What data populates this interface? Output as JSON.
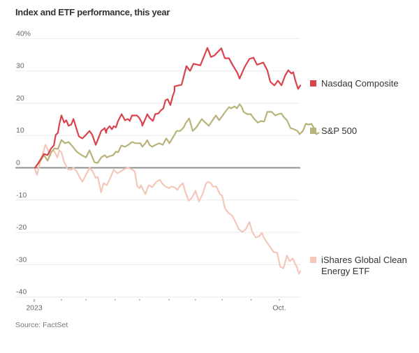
{
  "chart_data": {
    "type": "line",
    "title": "Index and ETF performance, this year",
    "source": "Source: FactSet",
    "xlabel": "",
    "ylabel": "",
    "x_unit": "months since Jan 1, 2023",
    "xlim": [
      0,
      9.8
    ],
    "ylim": [
      -40,
      40
    ],
    "grid": true,
    "y_ticks": [
      {
        "value": 40,
        "label": "40%"
      },
      {
        "value": 30,
        "label": "30"
      },
      {
        "value": 20,
        "label": "20"
      },
      {
        "value": 10,
        "label": "10"
      },
      {
        "value": 0,
        "label": "0"
      },
      {
        "value": -10,
        "label": "-10"
      },
      {
        "value": -20,
        "label": "-20"
      },
      {
        "value": -30,
        "label": "-30"
      },
      {
        "value": -40,
        "label": "-40"
      }
    ],
    "x_ticks": [
      {
        "value": 0,
        "label": "2023"
      },
      {
        "value": 1,
        "label": ""
      },
      {
        "value": 1.9,
        "label": ""
      },
      {
        "value": 2.97,
        "label": ""
      },
      {
        "value": 3.87,
        "label": ""
      },
      {
        "value": 4.95,
        "label": ""
      },
      {
        "value": 5.92,
        "label": ""
      },
      {
        "value": 6.9,
        "label": ""
      },
      {
        "value": 7.97,
        "label": ""
      },
      {
        "value": 9,
        "label": "Oct."
      }
    ],
    "legend_placement": "right-inline",
    "series": [
      {
        "name": "Nasdaq Composite",
        "color": "#d9434c",
        "points": [
          [
            0.03,
            0
          ],
          [
            0.15,
            1.5
          ],
          [
            0.28,
            3.2
          ],
          [
            0.36,
            4.3
          ],
          [
            0.49,
            3.9
          ],
          [
            0.62,
            6.0
          ],
          [
            0.72,
            6.9
          ],
          [
            0.79,
            10.2
          ],
          [
            0.87,
            10.8
          ],
          [
            0.92,
            13.4
          ],
          [
            1.0,
            16.2
          ],
          [
            1.1,
            14.0
          ],
          [
            1.18,
            14.7
          ],
          [
            1.26,
            13.0
          ],
          [
            1.36,
            13.4
          ],
          [
            1.44,
            15.1
          ],
          [
            1.56,
            11.9
          ],
          [
            1.64,
            9.7
          ],
          [
            1.77,
            9.1
          ],
          [
            1.9,
            10.2
          ],
          [
            2.03,
            11.4
          ],
          [
            2.13,
            10.2
          ],
          [
            2.26,
            7.1
          ],
          [
            2.33,
            8.6
          ],
          [
            2.46,
            11.4
          ],
          [
            2.59,
            12.3
          ],
          [
            2.64,
            10.8
          ],
          [
            2.67,
            11.9
          ],
          [
            2.77,
            12.9
          ],
          [
            2.85,
            11.9
          ],
          [
            2.92,
            12.9
          ],
          [
            3.0,
            12.5
          ],
          [
            3.08,
            14.5
          ],
          [
            3.21,
            16.6
          ],
          [
            3.33,
            14.7
          ],
          [
            3.44,
            15.1
          ],
          [
            3.51,
            14.5
          ],
          [
            3.59,
            16.2
          ],
          [
            3.77,
            16.2
          ],
          [
            3.85,
            15.5
          ],
          [
            3.95,
            14.0
          ],
          [
            3.97,
            13.0
          ],
          [
            4.08,
            15.1
          ],
          [
            4.15,
            16.6
          ],
          [
            4.23,
            15.5
          ],
          [
            4.36,
            14.5
          ],
          [
            4.44,
            16.6
          ],
          [
            4.56,
            16.8
          ],
          [
            4.64,
            17.7
          ],
          [
            4.74,
            18.4
          ],
          [
            4.82,
            20.9
          ],
          [
            4.9,
            21.2
          ],
          [
            5.0,
            19.4
          ],
          [
            5.08,
            22.0
          ],
          [
            5.15,
            23.8
          ],
          [
            5.15,
            24.5
          ],
          [
            5.15,
            25.2
          ],
          [
            5.41,
            25.7
          ],
          [
            5.59,
            31.5
          ],
          [
            5.72,
            30.0
          ],
          [
            5.85,
            32.2
          ],
          [
            6.1,
            31.7
          ],
          [
            6.36,
            37.1
          ],
          [
            6.49,
            34.3
          ],
          [
            6.62,
            34.8
          ],
          [
            6.87,
            37.0
          ],
          [
            6.87,
            37.0
          ],
          [
            7.0,
            33.9
          ],
          [
            7.15,
            33.9
          ],
          [
            7.28,
            31.9
          ],
          [
            7.46,
            29.4
          ],
          [
            7.54,
            27.6
          ],
          [
            7.72,
            31.1
          ],
          [
            7.9,
            33.7
          ],
          [
            8.05,
            34.1
          ],
          [
            8.18,
            31.9
          ],
          [
            8.41,
            32.6
          ],
          [
            8.56,
            30.2
          ],
          [
            8.67,
            26.6
          ],
          [
            8.82,
            25.5
          ],
          [
            8.95,
            27.0
          ],
          [
            9.08,
            25.5
          ],
          [
            9.21,
            28.5
          ],
          [
            9.33,
            30.2
          ],
          [
            9.44,
            29.2
          ],
          [
            9.51,
            29.6
          ],
          [
            9.59,
            27.0
          ],
          [
            9.69,
            24.4
          ],
          [
            9.77,
            25.5
          ]
        ]
      },
      {
        "name": "S&P 500",
        "color": "#b8b37a",
        "points": [
          [
            0.03,
            0
          ],
          [
            0.23,
            2.2
          ],
          [
            0.36,
            3.9
          ],
          [
            0.49,
            2.2
          ],
          [
            0.62,
            4.8
          ],
          [
            0.74,
            6.0
          ],
          [
            0.87,
            5.8
          ],
          [
            1.0,
            8.6
          ],
          [
            1.13,
            7.6
          ],
          [
            1.26,
            8.0
          ],
          [
            1.38,
            6.9
          ],
          [
            1.56,
            5.0
          ],
          [
            1.74,
            3.9
          ],
          [
            1.9,
            3.2
          ],
          [
            2.03,
            5.4
          ],
          [
            2.21,
            1.7
          ],
          [
            2.33,
            1.5
          ],
          [
            2.46,
            3.2
          ],
          [
            2.59,
            3.9
          ],
          [
            2.67,
            3.2
          ],
          [
            2.77,
            3.6
          ],
          [
            2.9,
            3.9
          ],
          [
            3.0,
            5.0
          ],
          [
            3.08,
            4.8
          ],
          [
            3.2,
            6.9
          ],
          [
            3.33,
            6.5
          ],
          [
            3.46,
            7.1
          ],
          [
            3.59,
            8.0
          ],
          [
            3.72,
            7.6
          ],
          [
            3.9,
            7.6
          ],
          [
            3.97,
            6.5
          ],
          [
            4.08,
            7.6
          ],
          [
            4.15,
            8.6
          ],
          [
            4.23,
            7.1
          ],
          [
            4.33,
            6.5
          ],
          [
            4.46,
            7.1
          ],
          [
            4.59,
            7.6
          ],
          [
            4.72,
            7.1
          ],
          [
            4.85,
            9.1
          ],
          [
            4.97,
            7.6
          ],
          [
            5.1,
            9.5
          ],
          [
            5.23,
            11.4
          ],
          [
            5.36,
            11.4
          ],
          [
            5.49,
            12.5
          ],
          [
            5.56,
            13.8
          ],
          [
            5.69,
            15.3
          ],
          [
            5.82,
            11.4
          ],
          [
            5.95,
            12.5
          ],
          [
            6.15,
            15.1
          ],
          [
            6.28,
            14.0
          ],
          [
            6.41,
            13.0
          ],
          [
            6.49,
            14.0
          ],
          [
            6.67,
            16.2
          ],
          [
            6.79,
            14.7
          ],
          [
            6.92,
            16.2
          ],
          [
            7.05,
            17.7
          ],
          [
            7.15,
            18.8
          ],
          [
            7.23,
            18.4
          ],
          [
            7.36,
            19.0
          ],
          [
            7.44,
            18.4
          ],
          [
            7.54,
            19.7
          ],
          [
            7.62,
            18.8
          ],
          [
            7.69,
            17.3
          ],
          [
            7.82,
            16.6
          ],
          [
            7.95,
            16.6
          ],
          [
            8.08,
            15.1
          ],
          [
            8.21,
            14.0
          ],
          [
            8.33,
            14.5
          ],
          [
            8.44,
            14.3
          ],
          [
            8.56,
            17.3
          ],
          [
            8.72,
            17.3
          ],
          [
            8.85,
            16.2
          ],
          [
            8.97,
            16.6
          ],
          [
            9.08,
            16.8
          ],
          [
            9.15,
            15.8
          ],
          [
            9.28,
            14.7
          ],
          [
            9.41,
            12.3
          ],
          [
            9.54,
            11.9
          ],
          [
            9.67,
            11.4
          ],
          [
            9.74,
            10.4
          ],
          [
            9.87,
            11.4
          ],
          [
            9.97,
            13.6
          ],
          [
            10.08,
            13.4
          ],
          [
            10.18,
            13.6
          ],
          [
            10.26,
            12.5
          ],
          [
            10.36,
            10.4
          ],
          [
            10.44,
            10.8
          ]
        ]
      },
      {
        "name": "iShares Global Clean Energy ETF",
        "color": "#f4c7b8",
        "points": [
          [
            0.03,
            -0.4
          ],
          [
            0.1,
            -2.2
          ],
          [
            0.23,
            2.2
          ],
          [
            0.33,
            4.8
          ],
          [
            0.41,
            7.1
          ],
          [
            0.49,
            5.8
          ],
          [
            0.59,
            3.7
          ],
          [
            0.62,
            5.0
          ],
          [
            0.72,
            5.4
          ],
          [
            0.85,
            3.2
          ],
          [
            0.92,
            5.4
          ],
          [
            1.0,
            4.8
          ],
          [
            1.1,
            1.7
          ],
          [
            1.23,
            -0.4
          ],
          [
            1.36,
            -0.6
          ],
          [
            1.44,
            0
          ],
          [
            1.56,
            -1.1
          ],
          [
            1.69,
            -3.2
          ],
          [
            1.77,
            -4.3
          ],
          [
            1.9,
            -2.2
          ],
          [
            2.03,
            0
          ],
          [
            2.15,
            -1.1
          ],
          [
            2.26,
            -3.2
          ],
          [
            2.33,
            -2.8
          ],
          [
            2.46,
            -7.6
          ],
          [
            2.54,
            -4.8
          ],
          [
            2.67,
            -5.4
          ],
          [
            2.79,
            -3.2
          ],
          [
            2.92,
            -0.6
          ],
          [
            3.05,
            -1.7
          ],
          [
            3.18,
            -1.1
          ],
          [
            3.31,
            -0.4
          ],
          [
            3.44,
            0
          ],
          [
            3.56,
            -0.4
          ],
          [
            3.69,
            -1.1
          ],
          [
            3.79,
            -5.8
          ],
          [
            3.87,
            -6.3
          ],
          [
            3.92,
            -5.4
          ],
          [
            4.08,
            -8.2
          ],
          [
            4.2,
            -5.4
          ],
          [
            4.33,
            -6.0
          ],
          [
            4.49,
            -4.3
          ],
          [
            4.62,
            -3.7
          ],
          [
            4.69,
            -4.8
          ],
          [
            4.82,
            -5.8
          ],
          [
            4.95,
            -6.3
          ],
          [
            5.03,
            -5.8
          ],
          [
            5.15,
            -6.0
          ],
          [
            5.26,
            -6.9
          ],
          [
            5.33,
            -5.8
          ],
          [
            5.46,
            -4.8
          ],
          [
            5.54,
            -7.3
          ],
          [
            5.67,
            -10.2
          ],
          [
            5.79,
            -9.3
          ],
          [
            5.92,
            -7.1
          ],
          [
            6.05,
            -10.4
          ],
          [
            6.18,
            -8.2
          ],
          [
            6.31,
            -4.8
          ],
          [
            6.38,
            -4.3
          ],
          [
            6.49,
            -4.8
          ],
          [
            6.56,
            -5.8
          ],
          [
            6.69,
            -5.8
          ],
          [
            6.82,
            -8.2
          ],
          [
            6.9,
            -8.6
          ],
          [
            7.0,
            -12.5
          ],
          [
            7.13,
            -14.0
          ],
          [
            7.26,
            -14.7
          ],
          [
            7.38,
            -16.6
          ],
          [
            7.51,
            -19.0
          ],
          [
            7.64,
            -19.9
          ],
          [
            7.77,
            -19.0
          ],
          [
            7.9,
            -16.8
          ],
          [
            7.97,
            -18.8
          ],
          [
            8.0,
            -19.7
          ],
          [
            8.13,
            -21.6
          ],
          [
            8.26,
            -21.2
          ],
          [
            8.36,
            -20.1
          ],
          [
            8.44,
            -21.8
          ],
          [
            8.62,
            -24.0
          ],
          [
            8.79,
            -26.1
          ],
          [
            8.92,
            -26.3
          ],
          [
            9.03,
            -30.6
          ],
          [
            9.15,
            -31.1
          ],
          [
            9.28,
            -27.2
          ],
          [
            9.38,
            -28.9
          ],
          [
            9.49,
            -28.1
          ],
          [
            9.64,
            -30.7
          ],
          [
            9.72,
            -32.8
          ],
          [
            9.77,
            -32.0
          ]
        ]
      }
    ]
  }
}
